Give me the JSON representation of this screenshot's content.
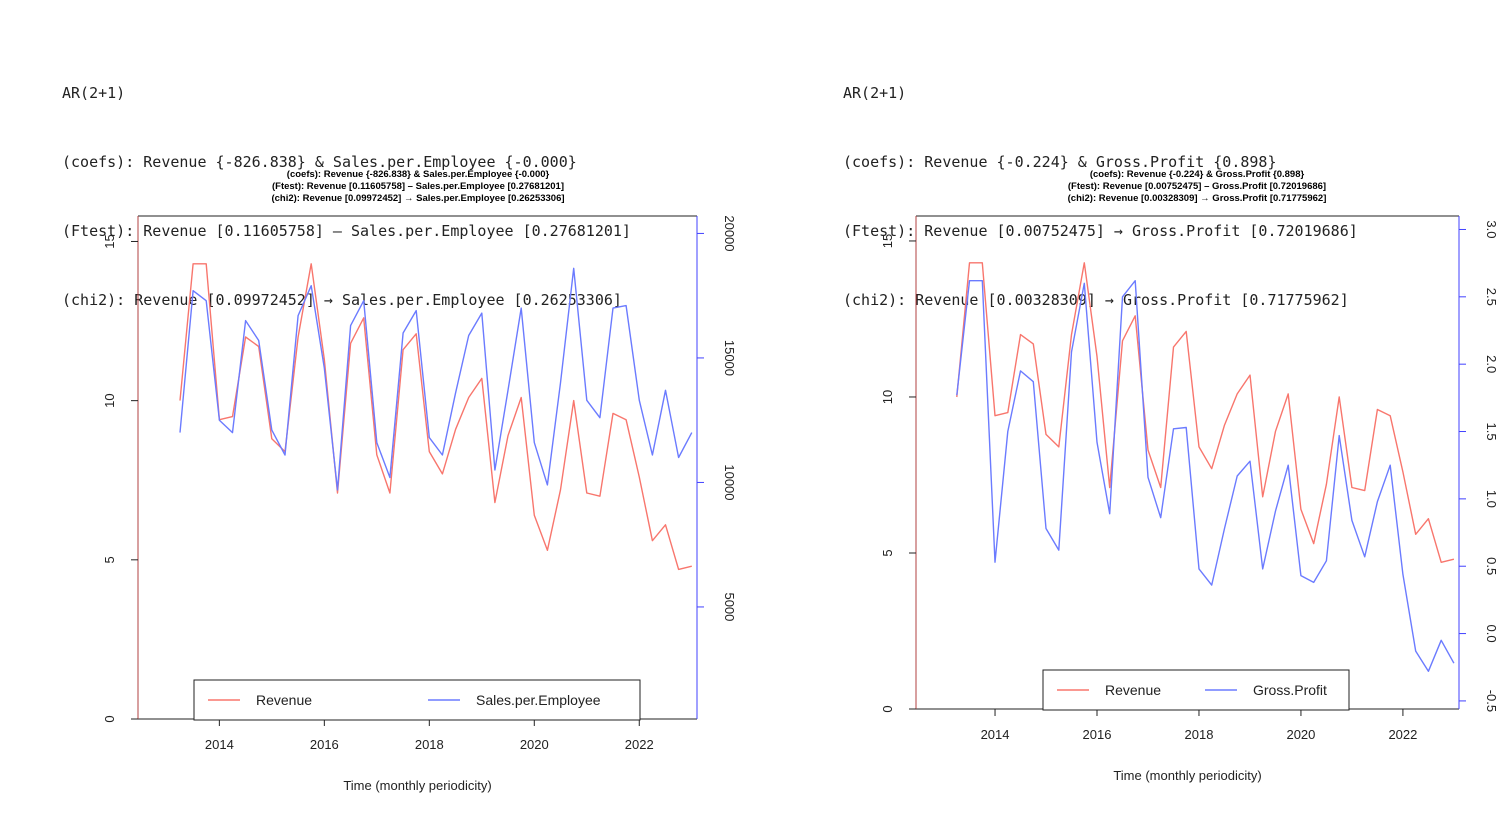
{
  "colors": {
    "revenue": "#f8766d",
    "secondary": "#6b7bff",
    "axis_right": "#4040ff"
  },
  "chart_data": [
    {
      "type": "line",
      "header": [
        "AR(2+1)",
        "(coefs): Revenue {-826.838} & Sales.per.Employee {-0.000}",
        "(Ftest): Revenue [0.11605758] – Sales.per.Employee [0.27681201]",
        "(chi2): Revenue [0.09972452] → Sales.per.Employee [0.26253306]"
      ],
      "title": [
        "(coefs): Revenue {-826.838} & Sales.per.Employee {-0.000}",
        "(Ftest): Revenue [0.11605758] – Sales.per.Employee [0.27681201]",
        "(chi2): Revenue [0.09972452] → Sales.per.Employee [0.26253306]"
      ],
      "xlabel": "Time (monthly periodicity)",
      "xlim": [
        2012.45,
        2023.1
      ],
      "xticks": [
        2014,
        2016,
        2018,
        2020,
        2022
      ],
      "ylim_left": [
        0,
        15.8
      ],
      "yticks_left": [
        0,
        5,
        10,
        15
      ],
      "ylim_right": [
        500,
        20700
      ],
      "yticks_right": [
        5000,
        10000,
        15000,
        20000
      ],
      "x": [
        2013.25,
        2013.5,
        2013.75,
        2014.0,
        2014.25,
        2014.5,
        2014.75,
        2015.0,
        2015.25,
        2015.5,
        2015.75,
        2016.0,
        2016.25,
        2016.5,
        2016.75,
        2017.0,
        2017.25,
        2017.5,
        2017.75,
        2018.0,
        2018.25,
        2018.5,
        2018.75,
        2019.0,
        2019.25,
        2019.5,
        2019.75,
        2020.0,
        2020.25,
        2020.5,
        2020.75,
        2021.0,
        2021.25,
        2021.5,
        2021.75,
        2022.0,
        2022.25,
        2022.5,
        2022.75,
        2023.0
      ],
      "series": [
        {
          "name": "Revenue",
          "axis": "left",
          "values": [
            10.0,
            14.3,
            14.3,
            9.4,
            9.5,
            12.0,
            11.7,
            8.8,
            8.4,
            12.0,
            14.3,
            11.3,
            7.1,
            11.8,
            12.6,
            8.3,
            7.1,
            11.6,
            12.1,
            8.4,
            7.7,
            9.1,
            10.1,
            10.7,
            6.8,
            8.9,
            10.1,
            6.4,
            5.3,
            7.2,
            10.0,
            7.1,
            7.0,
            9.6,
            9.4,
            7.6,
            5.6,
            6.1,
            4.7,
            4.8
          ]
        },
        {
          "name": "Sales.per.Employee",
          "axis": "right",
          "values": [
            12000,
            17700,
            17300,
            12500,
            12000,
            16500,
            15700,
            12100,
            11100,
            16700,
            17900,
            14600,
            9700,
            16300,
            17300,
            11600,
            10200,
            16000,
            16900,
            11800,
            11100,
            13600,
            15900,
            16800,
            10500,
            13700,
            17000,
            11600,
            9900,
            14000,
            18600,
            13300,
            12600,
            17000,
            17100,
            13300,
            11100,
            13700,
            11000,
            12000
          ]
        }
      ],
      "legend": [
        "Revenue",
        "Sales.per.Employee"
      ],
      "legend_position": "bottom"
    },
    {
      "type": "line",
      "header": [
        "AR(2+1)",
        "(coefs): Revenue {-0.224} & Gross.Profit {0.898}",
        "(Ftest): Revenue [0.00752475] → Gross.Profit [0.72019686]",
        "(chi2): Revenue [0.00328309] → Gross.Profit [0.71775962]"
      ],
      "title": [
        "(coefs): Revenue {-0.224} & Gross.Profit {0.898}",
        "(Ftest): Revenue [0.00752475] – Gross.Profit [0.72019686]",
        "(chi2): Revenue [0.00328309] → Gross.Profit [0.71775962]"
      ],
      "xlabel": "Time (monthly periodicity)",
      "xlim": [
        2012.45,
        2023.1
      ],
      "xticks": [
        2014,
        2016,
        2018,
        2020,
        2022
      ],
      "ylim_left": [
        0,
        15.8
      ],
      "yticks_left": [
        0,
        5,
        10,
        15
      ],
      "ylim_right": [
        -0.56,
        3.1
      ],
      "yticks_right": [
        -0.5,
        0.0,
        0.5,
        1.0,
        1.5,
        2.0,
        2.5,
        3.0
      ],
      "ytick_labels_right": [
        "-0.5",
        "0.0",
        "0.5",
        "1.0",
        "1.5",
        "2.0",
        "2.5",
        "3.0"
      ],
      "x": [
        2013.25,
        2013.5,
        2013.75,
        2014.0,
        2014.25,
        2014.5,
        2014.75,
        2015.0,
        2015.25,
        2015.5,
        2015.75,
        2016.0,
        2016.25,
        2016.5,
        2016.75,
        2017.0,
        2017.25,
        2017.5,
        2017.75,
        2018.0,
        2018.25,
        2018.5,
        2018.75,
        2019.0,
        2019.25,
        2019.5,
        2019.75,
        2020.0,
        2020.25,
        2020.5,
        2020.75,
        2021.0,
        2021.25,
        2021.5,
        2021.75,
        2022.0,
        2022.25,
        2022.5,
        2022.75,
        2023.0
      ],
      "series": [
        {
          "name": "Revenue",
          "axis": "left",
          "values": [
            10.0,
            14.3,
            14.3,
            9.4,
            9.5,
            12.0,
            11.7,
            8.8,
            8.4,
            12.0,
            14.3,
            11.3,
            7.1,
            11.8,
            12.6,
            8.3,
            7.1,
            11.6,
            12.1,
            8.4,
            7.7,
            9.1,
            10.1,
            10.7,
            6.8,
            8.9,
            10.1,
            6.4,
            5.3,
            7.2,
            10.0,
            7.1,
            7.0,
            9.6,
            9.4,
            7.6,
            5.6,
            6.1,
            4.7,
            4.8
          ]
        },
        {
          "name": "Gross.Profit",
          "axis": "right",
          "values": [
            1.77,
            2.62,
            2.62,
            0.53,
            1.5,
            1.95,
            1.87,
            0.78,
            0.62,
            2.09,
            2.6,
            1.42,
            0.89,
            2.5,
            2.62,
            1.16,
            0.86,
            1.52,
            1.53,
            0.48,
            0.36,
            0.78,
            1.17,
            1.28,
            0.48,
            0.91,
            1.25,
            0.43,
            0.38,
            0.54,
            1.47,
            0.84,
            0.57,
            0.98,
            1.25,
            0.44,
            -0.13,
            -0.28,
            -0.05,
            -0.22
          ]
        }
      ],
      "legend": [
        "Revenue",
        "Gross.Profit"
      ],
      "legend_position": "bottom"
    }
  ]
}
